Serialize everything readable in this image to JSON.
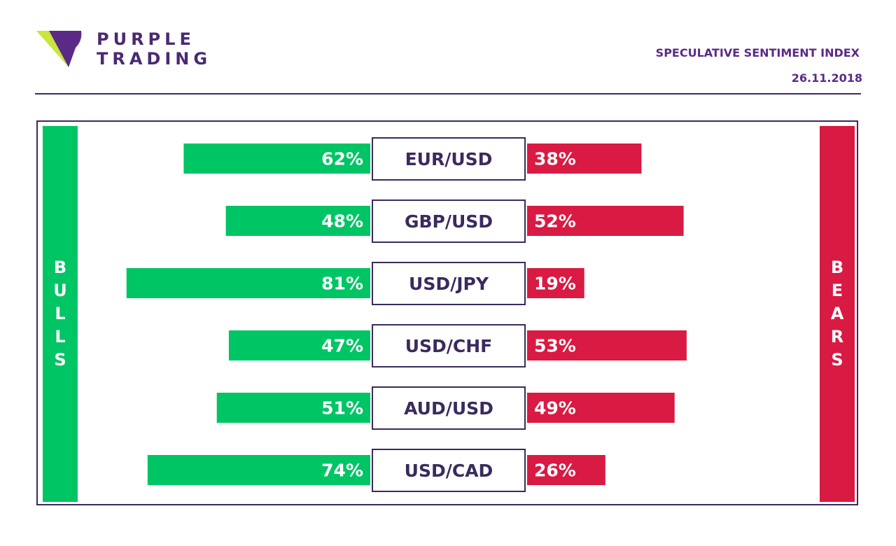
{
  "brand": {
    "line1": "PURPLE",
    "line2": "TRADING",
    "colors": {
      "purple": "#5b2a86",
      "lime": "#c8e63c"
    }
  },
  "header": {
    "title": "SPECULATIVE SENTIMENT INDEX",
    "date": "26.11.2018"
  },
  "sides": {
    "bulls_label": "BULLS",
    "bears_label": "BEARS",
    "bulls_color": "#00c565",
    "bears_color": "#d91a42"
  },
  "chart_data": {
    "type": "bar",
    "categories": [
      "EUR/USD",
      "GBP/USD",
      "USD/JPY",
      "USD/CHF",
      "AUD/USD",
      "USD/CAD"
    ],
    "series": [
      {
        "name": "BULLS",
        "values": [
          62,
          48,
          81,
          47,
          51,
          74
        ],
        "labels": [
          "62%",
          "48%",
          "81%",
          "47%",
          "51%",
          "74%"
        ],
        "color": "#00c565"
      },
      {
        "name": "BEARS",
        "values": [
          38,
          52,
          19,
          53,
          49,
          26
        ],
        "labels": [
          "38%",
          "52%",
          "19%",
          "53%",
          "49%",
          "26%"
        ],
        "color": "#d91a42"
      }
    ],
    "unit": "%",
    "xlim": [
      0,
      100
    ],
    "legend": "none",
    "grid": false
  }
}
